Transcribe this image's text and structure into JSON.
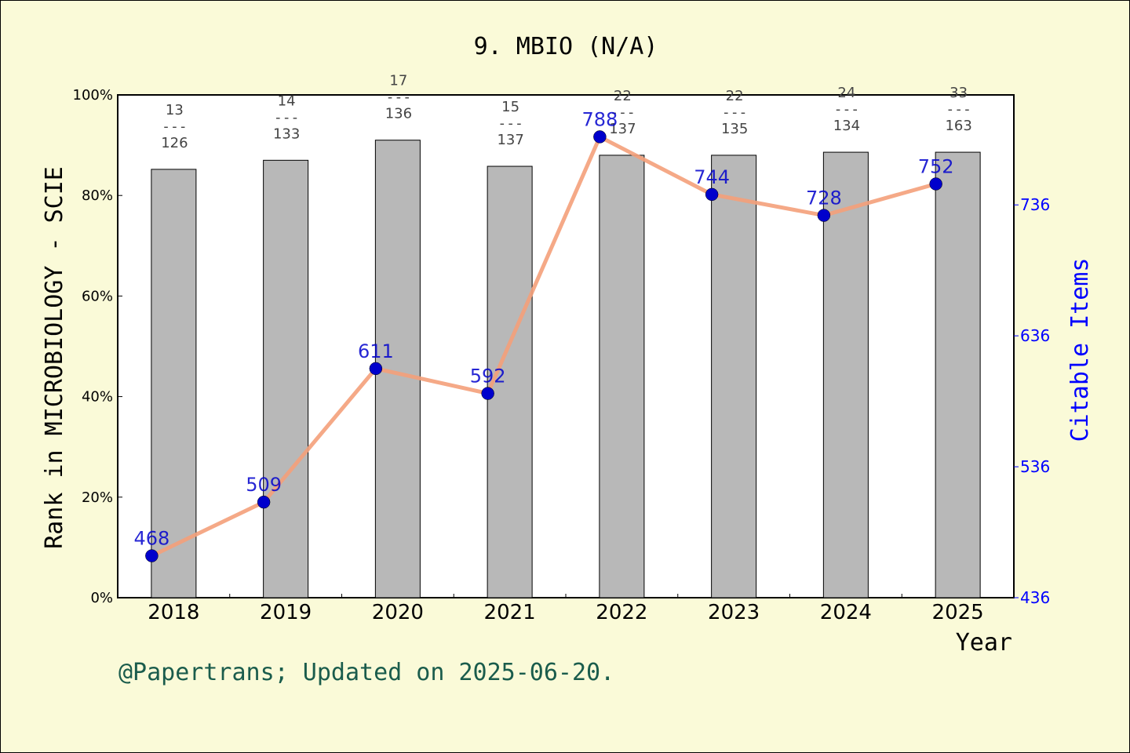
{
  "chart_data": {
    "type": "bar",
    "title": "9. MBIO (N/A)",
    "categories": [
      "2018",
      "2019",
      "2020",
      "2021",
      "2022",
      "2023",
      "2024",
      "2025"
    ],
    "series": [
      {
        "type": "bar",
        "values": [
          85.2,
          87.0,
          91.0,
          85.8,
          88.0,
          88.0,
          88.6,
          88.6
        ],
        "ranks": [
          "13",
          "14",
          "17",
          "15",
          "22",
          "22",
          "24",
          "33"
        ],
        "totals": [
          "126",
          "133",
          "136",
          "137",
          "137",
          "135",
          "134",
          "163"
        ],
        "color": "#b8b8b8",
        "axis": "left"
      },
      {
        "type": "line",
        "values": [
          468,
          509,
          611,
          592,
          788,
          744,
          728,
          752
        ],
        "color": "#f4a07a",
        "marker_color": "#0000cc",
        "axis": "right"
      }
    ],
    "xlabel": "Year",
    "ylabel": "Rank in MICROBIOLOGY - SCIE",
    "y2label": "Citable Items",
    "ylim": [
      0,
      100
    ],
    "y2lim": [
      436,
      820
    ],
    "yticks": [
      "0%",
      "20%",
      "40%",
      "60%",
      "80%",
      "100%"
    ],
    "y2ticks": [
      "436",
      "536",
      "636",
      "736"
    ],
    "y2tick_values": [
      436,
      536,
      636,
      736
    ],
    "fraction_separator": "---",
    "footer": "@Papertrans; Updated on 2025-06-20.",
    "colors": {
      "background": "#fafad8",
      "plot_background": "#ffffff",
      "right_axis": "#0000ff",
      "footer": "#1a5c4c",
      "fraction_text": "#444444"
    }
  }
}
